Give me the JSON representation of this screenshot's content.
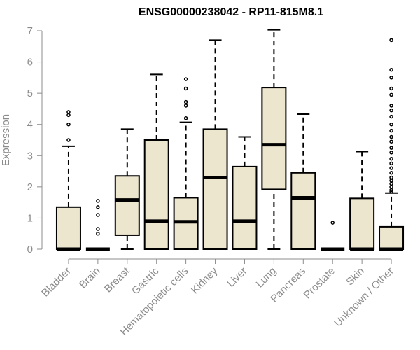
{
  "chart_data": {
    "type": "boxplot",
    "title": "ENSG00000238042 - RP11-815M8.1",
    "xlabel": "",
    "ylabel": "Expression",
    "ylim": [
      0,
      7
    ],
    "yticks": [
      "0",
      "1",
      "2",
      "3",
      "4",
      "5",
      "6",
      "7"
    ],
    "grid": false,
    "box_fill": "#ede6cf",
    "categories": [
      "Bladder",
      "Brain",
      "Breast",
      "Gastric",
      "Hematopoietic cells",
      "Kidney",
      "Liver",
      "Lung",
      "Pancreas",
      "Prostate",
      "Skin",
      "Unknown / Other"
    ],
    "boxes": [
      {
        "min": 0,
        "q1": 0,
        "median": 0,
        "q3": 1.35,
        "max": 3.3,
        "outliers": [
          3.5,
          4.0,
          4.3,
          4.4
        ]
      },
      {
        "min": 0,
        "q1": 0,
        "median": 0,
        "q3": 0,
        "max": 0,
        "outliers": [
          0.5,
          0.65,
          1.1,
          1.35,
          1.55
        ]
      },
      {
        "min": 0,
        "q1": 0.45,
        "median": 1.58,
        "q3": 2.35,
        "max": 3.85,
        "outliers": []
      },
      {
        "min": 0,
        "q1": 0,
        "median": 0.9,
        "q3": 3.5,
        "max": 5.6,
        "outliers": []
      },
      {
        "min": 0,
        "q1": 0,
        "median": 0.88,
        "q3": 1.65,
        "max": 4.07,
        "outliers": [
          4.2,
          4.6,
          4.72,
          5.15,
          5.45
        ]
      },
      {
        "min": 0,
        "q1": 0,
        "median": 2.3,
        "q3": 3.85,
        "max": 6.7,
        "outliers": []
      },
      {
        "min": 0,
        "q1": 0,
        "median": 0.9,
        "q3": 2.65,
        "max": 3.6,
        "outliers": []
      },
      {
        "min": 0,
        "q1": 1.92,
        "median": 3.35,
        "q3": 5.18,
        "max": 7.03,
        "outliers": []
      },
      {
        "min": 0,
        "q1": 0,
        "median": 1.65,
        "q3": 2.45,
        "max": 4.33,
        "outliers": []
      },
      {
        "min": 0,
        "q1": 0,
        "median": 0,
        "q3": 0,
        "max": 0,
        "outliers": [
          0.85
        ]
      },
      {
        "min": 0,
        "q1": 0,
        "median": 0,
        "q3": 1.63,
        "max": 3.13,
        "outliers": []
      },
      {
        "min": 0,
        "q1": 0,
        "median": 0,
        "q3": 0.72,
        "max": 1.8,
        "outliers": [
          1.85,
          1.9,
          2.0,
          2.1,
          2.2,
          2.3,
          2.45,
          2.6,
          2.75,
          2.9,
          3.1,
          3.25,
          3.45,
          3.6,
          3.8,
          4.0,
          4.25,
          4.45,
          4.6,
          4.95,
          5.15,
          5.5,
          5.75,
          6.7
        ]
      }
    ]
  }
}
